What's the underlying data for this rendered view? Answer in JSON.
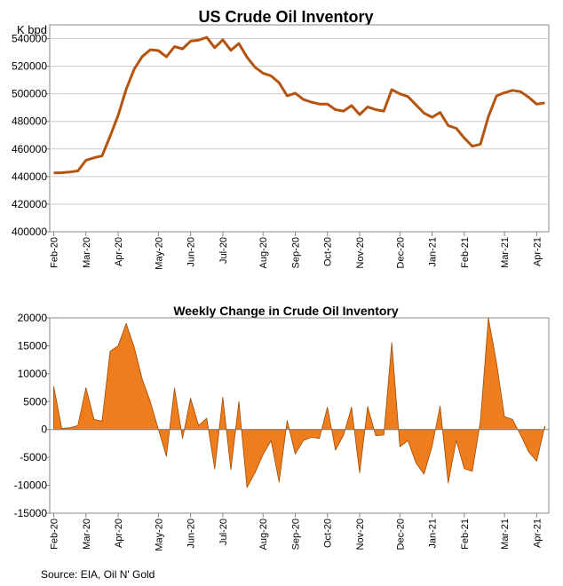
{
  "chart_data": [
    {
      "type": "line",
      "title": "US Crude Oil Inventory",
      "ylabel": "K bpd",
      "xlabel": "",
      "ylim": [
        400000,
        550000
      ],
      "yticks": [
        400000,
        420000,
        440000,
        460000,
        480000,
        500000,
        520000,
        540000
      ],
      "ytick_labels": [
        "400000",
        "420000",
        "440000",
        "460000",
        "480000",
        "500000",
        "520000",
        "540000"
      ],
      "x_labels": [
        "Feb-20",
        "Mar-20",
        "Apr-20",
        "May-20",
        "Jun-20",
        "Jul-20",
        "Aug-20",
        "Sep-20",
        "Oct-20",
        "Nov-20",
        "Dec-20",
        "Jan-21",
        "Feb-21",
        "Mar-21",
        "Apr-21"
      ],
      "x_label_week_index": [
        0,
        4,
        8,
        13,
        17,
        21,
        26,
        30,
        34,
        38,
        43,
        47,
        51,
        56,
        60
      ],
      "color": "#B5540F",
      "series": [
        {
          "name": "US Crude Oil Inventory",
          "values": [
            442700,
            442800,
            443300,
            444100,
            451800,
            453600,
            455000,
            469200,
            484300,
            503300,
            518000,
            527000,
            532000,
            531300,
            526900,
            534200,
            532600,
            538200,
            538900,
            540900,
            533400,
            539200,
            531500,
            536500,
            526600,
            519300,
            515000,
            513000,
            508000,
            498500,
            500500,
            496000,
            494000,
            492600,
            492500,
            488500,
            487500,
            491500,
            485000,
            490500,
            488500,
            487500,
            503100,
            500000,
            498000,
            492000,
            486000,
            483000,
            486500,
            477000,
            475000,
            468000,
            462000,
            463500,
            483500,
            498500,
            500800,
            502500,
            501500,
            497500,
            492500,
            493500
          ]
        }
      ]
    },
    {
      "type": "area",
      "title": "Weekly Change in Crude Oil Inventory",
      "xlabel": "",
      "ylabel": "",
      "ylim": [
        -15000,
        20000
      ],
      "yticks": [
        -15000,
        -10000,
        -5000,
        0,
        5000,
        10000,
        15000,
        20000
      ],
      "ytick_labels": [
        "-15000",
        "-10000",
        "-5000",
        "0",
        "5000",
        "10000",
        "15000",
        "20000"
      ],
      "x_labels": [
        "Feb-20",
        "Mar-20",
        "Apr-20",
        "May-20",
        "Jun-20",
        "Jul-20",
        "Aug-20",
        "Sep-20",
        "Oct-20",
        "Nov-20",
        "Dec-20",
        "Jan-21",
        "Feb-21",
        "Mar-21",
        "Apr-21"
      ],
      "x_label_week_index": [
        0,
        4,
        8,
        13,
        17,
        21,
        26,
        30,
        34,
        38,
        43,
        47,
        51,
        56,
        60
      ],
      "color": "#EE7D1E",
      "edge_color": "#A04A00",
      "series": [
        {
          "name": "Weekly Change",
          "values": [
            7700,
            200,
            300,
            700,
            7500,
            1800,
            1500,
            14000,
            15000,
            19000,
            14700,
            9000,
            5000,
            0,
            -4800,
            7400,
            -1600,
            5600,
            700,
            2000,
            -7100,
            5800,
            -7200,
            5000,
            -10400,
            -7800,
            -4500,
            -2000,
            -9400,
            1600,
            -4400,
            -2000,
            -1400,
            -1600,
            4000,
            -3700,
            -1000,
            4000,
            -7800,
            4100,
            -1100,
            -1000,
            15600,
            -3100,
            -2000,
            -6000,
            -8000,
            -3000,
            4200,
            -9600,
            -2000,
            -7000,
            -7500,
            1500,
            20000,
            12000,
            2300,
            1800,
            -1000,
            -4000,
            -5700,
            600
          ]
        }
      ]
    }
  ],
  "source": "Source: EIA, Oil N' Gold"
}
